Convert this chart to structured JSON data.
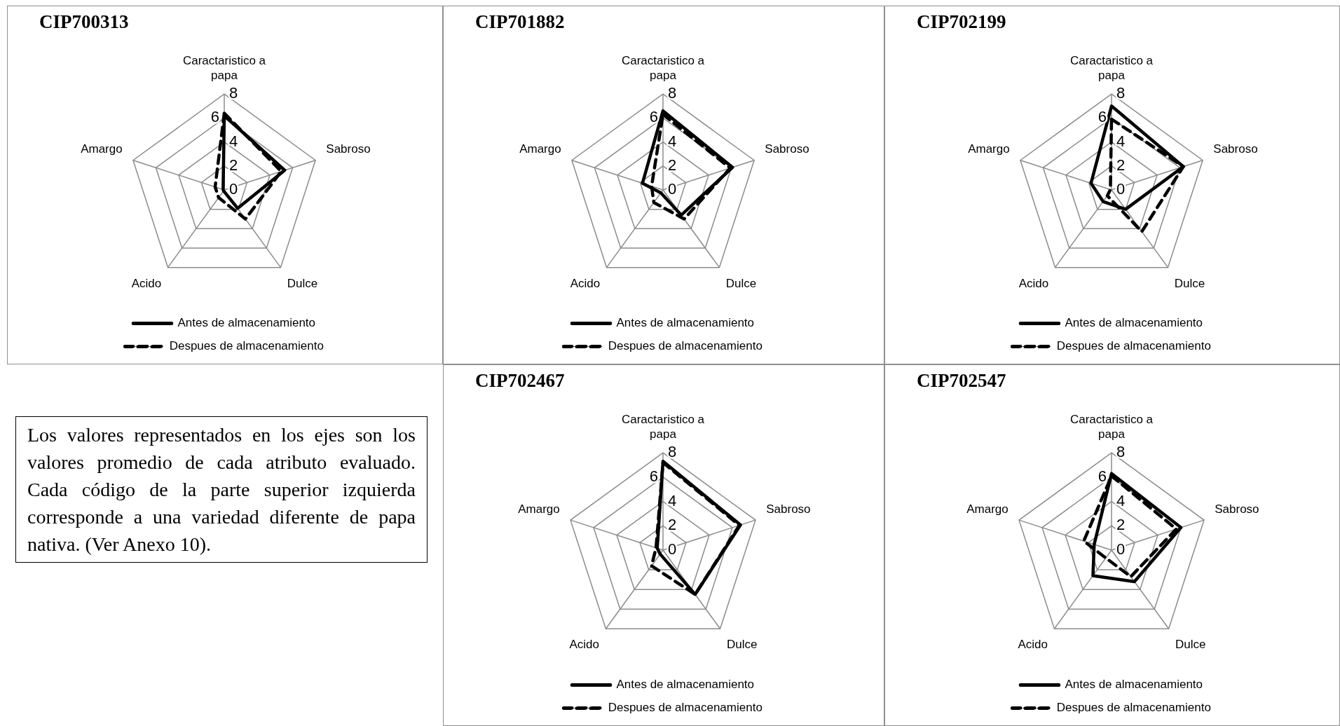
{
  "chart_data": [
    {
      "type": "radar",
      "title": "CIP700313",
      "categories": [
        "Caractaristico a papa",
        "Sabroso",
        "Dulce",
        "Acido",
        "Amargo"
      ],
      "ylim": [
        0,
        8
      ],
      "yticks": [
        0,
        2,
        4,
        6,
        8
      ],
      "grid": true,
      "legend": "bottom",
      "marker": "none",
      "series": [
        {
          "name": "Antes de almacenamiento",
          "color": "#000000",
          "line_style": "solid",
          "values": [
            6.2,
            5.3,
            1.9,
            0.1,
            0.1
          ]
        },
        {
          "name": "Despues de almacenamiento",
          "color": "#000000",
          "line_style": "dashed",
          "values": [
            6.4,
            5.0,
            3.0,
            0.8,
            0.8
          ]
        }
      ]
    },
    {
      "type": "radar",
      "title": "CIP701882",
      "categories": [
        "Caractaristico a papa",
        "Sabroso",
        "Dulce",
        "Acido",
        "Amargo"
      ],
      "ylim": [
        0,
        8
      ],
      "yticks": [
        0,
        2,
        4,
        6,
        8
      ],
      "grid": true,
      "legend": "bottom",
      "marker": "none",
      "series": [
        {
          "name": "Antes de almacenamiento",
          "color": "#000000",
          "line_style": "solid",
          "values": [
            6.6,
            6.1,
            2.6,
            0.3,
            1.8
          ]
        },
        {
          "name": "Despues de almacenamiento",
          "color": "#000000",
          "line_style": "dashed",
          "values": [
            6.3,
            5.9,
            3.0,
            1.3,
            1.0
          ]
        }
      ]
    },
    {
      "type": "radar",
      "title": "CIP702199",
      "categories": [
        "Caractaristico a papa",
        "Sabroso",
        "Dulce",
        "Acido",
        "Amargo"
      ],
      "ylim": [
        0,
        8
      ],
      "yticks": [
        0,
        2,
        4,
        6,
        8
      ],
      "grid": true,
      "legend": "bottom",
      "marker": "none",
      "series": [
        {
          "name": "Antes de almacenamiento",
          "color": "#000000",
          "line_style": "solid",
          "values": [
            7.0,
            6.3,
            2.0,
            1.2,
            1.8
          ]
        },
        {
          "name": "Despues de almacenamiento",
          "color": "#000000",
          "line_style": "dashed",
          "values": [
            5.9,
            6.3,
            4.3,
            0.6,
            0.1
          ]
        }
      ]
    },
    {
      "type": "other",
      "annotations": [
        "Los valores representados en los ejes son los valores promedio de cada atributo evaluado. Cada código de la parte superior izquierda corresponde a una variedad diferente de papa nativa. (Ver Anexo 10)."
      ]
    },
    {
      "type": "radar",
      "title": "CIP702467",
      "categories": [
        "Caractaristico a papa",
        "Sabroso",
        "Dulce",
        "Acido",
        "Amargo"
      ],
      "ylim": [
        0,
        8
      ],
      "yticks": [
        0,
        2,
        4,
        6,
        8
      ],
      "grid": true,
      "legend": "bottom",
      "marker": "none",
      "series": [
        {
          "name": "Antes de almacenamiento",
          "color": "#000000",
          "line_style": "solid",
          "values": [
            7.3,
            6.7,
            4.5,
            0.4,
            0.5
          ]
        },
        {
          "name": "Despues de almacenamiento",
          "color": "#000000",
          "line_style": "dashed",
          "values": [
            7.2,
            6.6,
            4.5,
            1.6,
            0.6
          ]
        }
      ]
    },
    {
      "type": "radar",
      "title": "CIP702547",
      "categories": [
        "Caractaristico a papa",
        "Sabroso",
        "Dulce",
        "Acido",
        "Amargo"
      ],
      "ylim": [
        0,
        8
      ],
      "yticks": [
        0,
        2,
        4,
        6,
        8
      ],
      "grid": true,
      "legend": "bottom",
      "marker": "none",
      "series": [
        {
          "name": "Antes de almacenamiento",
          "color": "#000000",
          "line_style": "solid",
          "values": [
            6.3,
            6.0,
            3.2,
            2.6,
            1.5
          ]
        },
        {
          "name": "Despues de almacenamiento",
          "color": "#000000",
          "line_style": "dashed",
          "values": [
            6.1,
            5.6,
            2.7,
            0.8,
            2.4
          ]
        }
      ]
    }
  ]
}
